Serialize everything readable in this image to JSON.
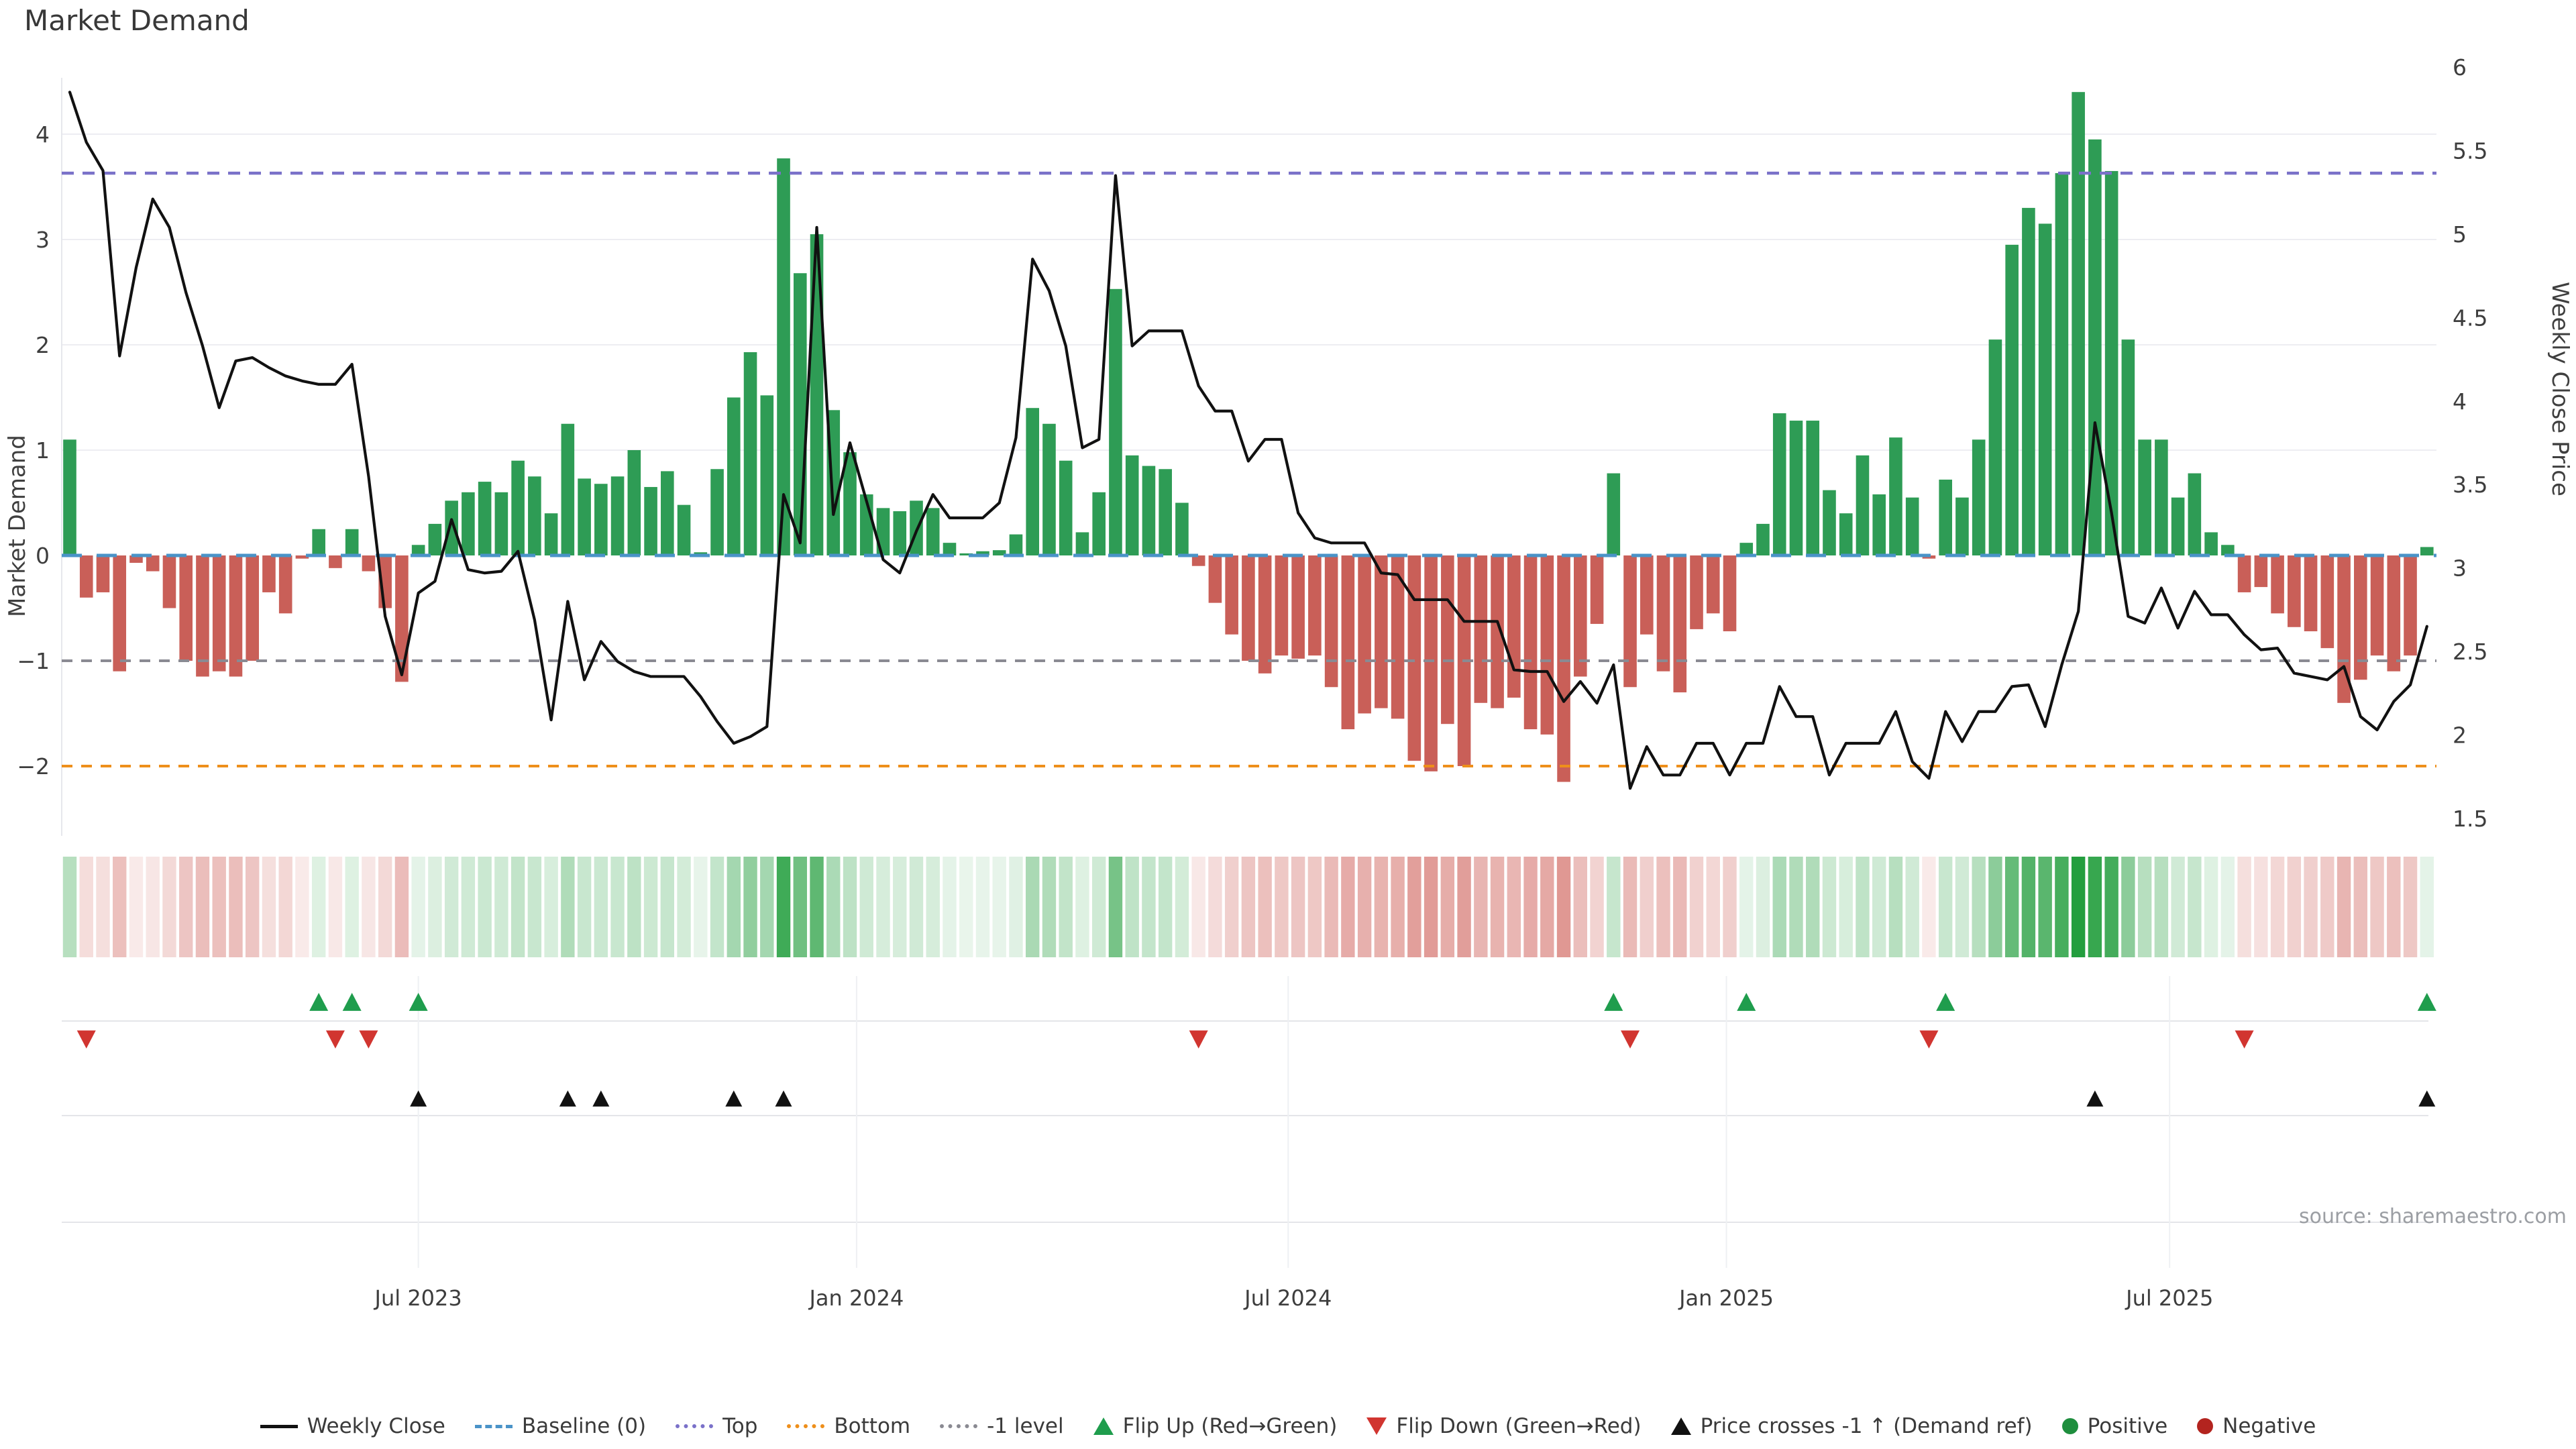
{
  "title": "Market Demand",
  "source": "source: sharemaestro.com",
  "axes": {
    "left_label": "Market Demand",
    "right_label": "Weekly Close Price",
    "left_ticks": [
      4,
      3,
      2,
      1,
      0,
      -1,
      -2
    ],
    "right_ticks": [
      6,
      5.5,
      5,
      4.5,
      4,
      3.5,
      3,
      2.5,
      2,
      1.5
    ],
    "x_ticks": [
      {
        "label": "Jul 2023",
        "week": 22
      },
      {
        "label": "Jan 2024",
        "week": 48.4
      },
      {
        "label": "Jul 2024",
        "week": 74.4
      },
      {
        "label": "Jan 2025",
        "week": 100.8
      },
      {
        "label": "Jul 2025",
        "week": 127.5
      }
    ]
  },
  "chart_data": {
    "type": "bar",
    "x_unit": "week (2023-02 to 2025-10)",
    "title": "Market Demand",
    "ylabel_left": "Market Demand",
    "ylabel_right": "Weekly Close Price",
    "ylim_left": [
      -2.57,
      4.54
    ],
    "ylim_right": [
      1.28,
      6.0
    ],
    "levels": {
      "baseline": 0,
      "top": 3.63,
      "bottom": -2.0,
      "minus1": -1
    },
    "series": [
      {
        "name": "Market Demand",
        "type": "bar",
        "values": [
          1.1,
          -0.4,
          -0.35,
          -1.1,
          -0.07,
          -0.15,
          -0.5,
          -1.0,
          -1.15,
          -1.1,
          -1.15,
          -1.0,
          -0.35,
          -0.55,
          -0.03,
          0.25,
          -0.12,
          0.25,
          -0.15,
          -0.5,
          -1.2,
          0.1,
          0.3,
          0.52,
          0.6,
          0.7,
          0.6,
          0.9,
          0.75,
          0.4,
          1.25,
          0.73,
          0.68,
          0.75,
          1.0,
          0.65,
          0.8,
          0.48,
          0.03,
          0.82,
          1.5,
          1.93,
          1.52,
          3.77,
          2.68,
          3.05,
          1.38,
          0.98,
          0.58,
          0.45,
          0.42,
          0.52,
          0.45,
          0.12,
          0.02,
          0.04,
          0.05,
          0.2,
          1.4,
          1.25,
          0.9,
          0.22,
          0.6,
          2.53,
          0.95,
          0.85,
          0.82,
          0.5,
          -0.1,
          -0.45,
          -0.75,
          -1.0,
          -1.12,
          -0.95,
          -0.98,
          -0.95,
          -1.25,
          -1.65,
          -1.5,
          -1.45,
          -1.55,
          -1.95,
          -2.05,
          -1.6,
          -2.0,
          -1.4,
          -1.45,
          -1.35,
          -1.65,
          -1.7,
          -2.15,
          -1.15,
          -0.65,
          0.78,
          -1.25,
          -0.75,
          -1.1,
          -1.3,
          -0.7,
          -0.55,
          -0.72,
          0.12,
          0.3,
          1.35,
          1.28,
          1.28,
          0.62,
          0.4,
          0.95,
          0.58,
          1.12,
          0.55,
          -0.03,
          0.72,
          0.55,
          1.1,
          2.05,
          2.95,
          3.3,
          3.15,
          3.63,
          4.4,
          3.95,
          3.65,
          2.05,
          1.1,
          1.1,
          0.55,
          0.78,
          0.22,
          0.1,
          -0.35,
          -0.3,
          -0.55,
          -0.68,
          -0.72,
          -0.88,
          -1.4,
          -1.18,
          -0.95,
          -1.1,
          -0.95,
          0.08
        ]
      },
      {
        "name": "Weekly Close",
        "type": "line",
        "values": [
          5.85,
          5.55,
          5.38,
          4.27,
          4.8,
          5.21,
          5.04,
          4.65,
          4.33,
          3.96,
          4.24,
          4.26,
          4.2,
          4.15,
          4.12,
          4.1,
          4.1,
          4.22,
          3.55,
          2.71,
          2.36,
          2.85,
          2.92,
          3.29,
          2.99,
          2.97,
          2.98,
          3.1,
          2.69,
          2.09,
          2.8,
          2.33,
          2.56,
          2.44,
          2.38,
          2.35,
          2.35,
          2.35,
          2.23,
          2.08,
          1.95,
          1.99,
          2.05,
          3.44,
          3.15,
          5.04,
          3.32,
          3.75,
          3.4,
          3.05,
          2.97,
          3.22,
          3.44,
          3.3,
          3.3,
          3.3,
          3.39,
          3.78,
          4.85,
          4.66,
          4.33,
          3.72,
          3.77,
          5.35,
          4.33,
          4.42,
          4.42,
          4.42,
          4.09,
          3.94,
          3.94,
          3.64,
          3.77,
          3.77,
          3.33,
          3.18,
          3.15,
          3.15,
          3.15,
          2.97,
          2.96,
          2.81,
          2.81,
          2.81,
          2.68,
          2.68,
          2.68,
          2.39,
          2.38,
          2.38,
          2.2,
          2.32,
          2.19,
          2.42,
          1.68,
          1.93,
          1.76,
          1.76,
          1.95,
          1.95,
          1.76,
          1.95,
          1.95,
          2.29,
          2.11,
          2.11,
          1.76,
          1.95,
          1.95,
          1.95,
          2.14,
          1.84,
          1.74,
          2.14,
          1.96,
          2.14,
          2.14,
          2.29,
          2.3,
          2.05,
          2.42,
          2.74,
          3.87,
          3.33,
          2.71,
          2.67,
          2.88,
          2.64,
          2.86,
          2.72,
          2.72,
          2.6,
          2.51,
          2.52,
          2.37,
          2.35,
          2.33,
          2.41,
          2.11,
          2.03,
          2.2,
          2.3,
          2.65
        ]
      }
    ],
    "heatmap": {
      "note": "weekly demand rendered as red/green intensity strip",
      "derived_from": "Market Demand"
    },
    "markers": {
      "flip_up_weeks": [
        16,
        18,
        22,
        94,
        102,
        114,
        143
      ],
      "flip_down_weeks": [
        2,
        17,
        19,
        69,
        95,
        113,
        132
      ],
      "price_cross_weeks": [
        22,
        31,
        33,
        41,
        44,
        123,
        143
      ]
    },
    "legend_position": "bottom center",
    "grid": true
  },
  "colors": {
    "bar_positive": "#2e9c55",
    "bar_negative": "#c95f58",
    "price_line": "#111111",
    "baseline": "#4a93c8",
    "top_level": "#7a71c9",
    "bottom_level": "#ee8f1b",
    "minus1_level": "#8a8a92",
    "flip_up": "#1f9d4d",
    "flip_down": "#d13530",
    "price_cross": "#111111",
    "positive_dot": "#1e8e3e",
    "negative_dot": "#b3241f",
    "grid": "#ededf2",
    "heat_green": "35,158,62",
    "heat_red": "197,64,56"
  },
  "legend": [
    {
      "label": "Weekly Close",
      "swatch": "line",
      "color": "#111111"
    },
    {
      "label": "Baseline (0)",
      "swatch": "dashed",
      "color": "#4a93c8"
    },
    {
      "label": "Top",
      "swatch": "dotted",
      "color": "#7a71c9"
    },
    {
      "label": "Bottom",
      "swatch": "dotted",
      "color": "#ee8f1b"
    },
    {
      "label": "-1 level",
      "swatch": "dotted",
      "color": "#8a8a92"
    },
    {
      "label": "Flip Up (Red→Green)",
      "swatch": "triangle-up",
      "color": "#1f9d4d"
    },
    {
      "label": "Flip Down (Green→Red)",
      "swatch": "triangle-down",
      "color": "#d13530"
    },
    {
      "label": "Price crosses -1 ↑ (Demand ref)",
      "swatch": "triangle-up",
      "color": "#111111"
    },
    {
      "label": "Positive",
      "swatch": "dot",
      "color": "#1e8e3e"
    },
    {
      "label": "Negative",
      "swatch": "dot",
      "color": "#b3241f"
    }
  ]
}
